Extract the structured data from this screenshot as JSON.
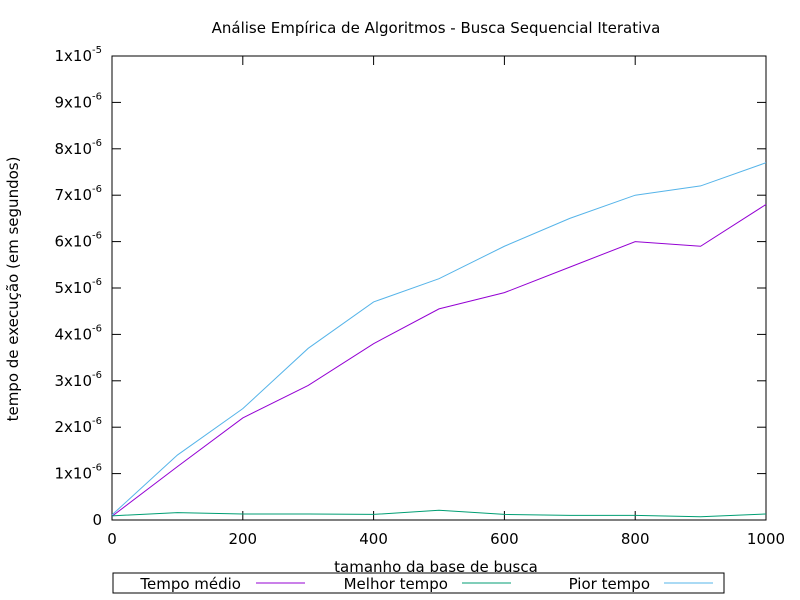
{
  "chart_data": {
    "type": "line",
    "title": "Análise Empírica de Algoritmos - Busca Sequencial Iterativa",
    "xlabel": "tamanho da base de busca",
    "ylabel": "tempo de execução (em segundos)",
    "xlim": [
      0,
      1000
    ],
    "ylim": [
      0,
      1e-05
    ],
    "grid": false,
    "legend_position": "bottom",
    "x_ticks": [
      {
        "value": 0,
        "label": "0"
      },
      {
        "value": 200,
        "label": "200"
      },
      {
        "value": 400,
        "label": "400"
      },
      {
        "value": 600,
        "label": "600"
      },
      {
        "value": 800,
        "label": "800"
      },
      {
        "value": 1000,
        "label": "1000"
      }
    ],
    "y_ticks": [
      {
        "value": 0,
        "label": "0",
        "mantissa": "0",
        "exponent": ""
      },
      {
        "value": 1e-06,
        "label": "1x10-6",
        "mantissa": "1x10",
        "exponent": "-6"
      },
      {
        "value": 2e-06,
        "label": "2x10-6",
        "mantissa": "2x10",
        "exponent": "-6"
      },
      {
        "value": 3e-06,
        "label": "3x10-6",
        "mantissa": "3x10",
        "exponent": "-6"
      },
      {
        "value": 4e-06,
        "label": "4x10-6",
        "mantissa": "4x10",
        "exponent": "-6"
      },
      {
        "value": 5e-06,
        "label": "5x10-6",
        "mantissa": "5x10",
        "exponent": "-6"
      },
      {
        "value": 6e-06,
        "label": "6x10-6",
        "mantissa": "6x10",
        "exponent": "-6"
      },
      {
        "value": 7e-06,
        "label": "7x10-6",
        "mantissa": "7x10",
        "exponent": "-6"
      },
      {
        "value": 8e-06,
        "label": "8x10-6",
        "mantissa": "8x10",
        "exponent": "-6"
      },
      {
        "value": 9e-06,
        "label": "9x10-6",
        "mantissa": "9x10",
        "exponent": "-6"
      },
      {
        "value": 1e-05,
        "label": "1x10-5",
        "mantissa": "1x10",
        "exponent": "-5"
      }
    ],
    "x": [
      0,
      100,
      200,
      300,
      400,
      500,
      600,
      700,
      800,
      900,
      1000
    ],
    "series": [
      {
        "name": "Tempo médio",
        "color": "#9400d3",
        "values": [
          8e-08,
          1.15e-06,
          2.2e-06,
          2.9e-06,
          3.8e-06,
          4.55e-06,
          4.9e-06,
          5.45e-06,
          6e-06,
          5.9e-06,
          6.8e-06
        ]
      },
      {
        "name": "Melhor tempo",
        "color": "#009e73",
        "values": [
          9e-08,
          1.6e-07,
          1.3e-07,
          1.3e-07,
          1.2e-07,
          2.1e-07,
          1.2e-07,
          1e-07,
          1e-07,
          7e-08,
          1.3e-07
        ]
      },
      {
        "name": "Pior tempo",
        "color": "#56b4e9",
        "values": [
          1.1e-07,
          1.4e-06,
          2.4e-06,
          3.7e-06,
          4.7e-06,
          5.2e-06,
          5.9e-06,
          6.5e-06,
          7e-06,
          7.2e-06,
          7.7e-06
        ]
      }
    ]
  }
}
